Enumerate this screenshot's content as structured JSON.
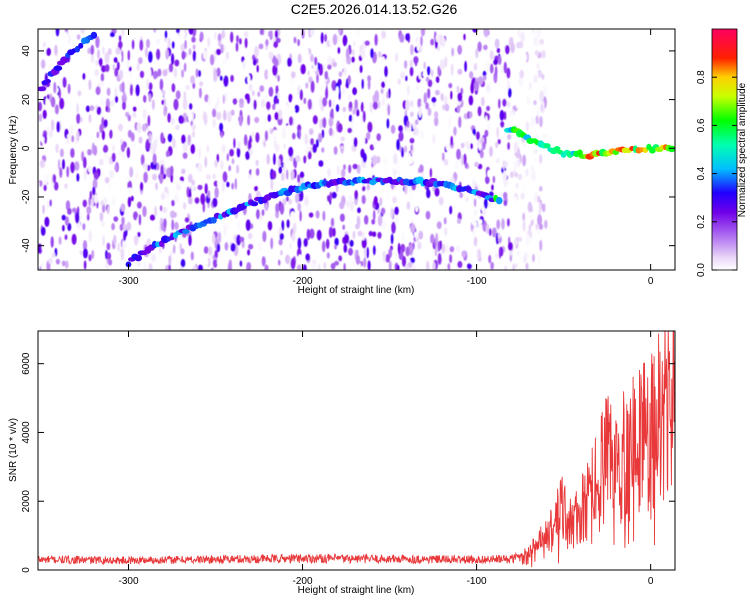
{
  "figure": {
    "title": "C2E5.2026.014.13.52.G26"
  },
  "chart_data": [
    {
      "type": "heatmap",
      "xlabel": "Height of straight line (km)",
      "ylabel": "Frequency (Hz)",
      "xlim": [
        -352,
        14
      ],
      "ylim": [
        -50,
        49
      ],
      "xticks": [
        -300,
        -200,
        -100,
        0
      ],
      "yticks": [
        -40,
        -20,
        0,
        20,
        40
      ],
      "colorbar": {
        "label": "Normalized spectral amplitude",
        "range": [
          0,
          1
        ],
        "ticks": [
          0.0,
          0.2,
          0.4,
          0.6,
          0.8
        ],
        "colormap": "rainbow (white-violet-blue-cyan-green-yellow-red-magenta)"
      },
      "ridge": {
        "description": "dominant spectral track",
        "points": [
          {
            "x": -350,
            "y": 25
          },
          {
            "x": -335,
            "y": 38
          },
          {
            "x": -318,
            "y": 48
          },
          {
            "x": -300,
            "y": -47
          },
          {
            "x": -285,
            "y": -40
          },
          {
            "x": -265,
            "y": -33
          },
          {
            "x": -245,
            "y": -27
          },
          {
            "x": -220,
            "y": -20
          },
          {
            "x": -195,
            "y": -15
          },
          {
            "x": -175,
            "y": -14
          },
          {
            "x": -150,
            "y": -13
          },
          {
            "x": -125,
            "y": -14
          },
          {
            "x": -110,
            "y": -16
          },
          {
            "x": -95,
            "y": -20
          },
          {
            "x": -85,
            "y": -22
          },
          {
            "x": -82,
            "y": 8
          },
          {
            "x": -75,
            "y": 6
          },
          {
            "x": -65,
            "y": 2
          },
          {
            "x": -50,
            "y": -2
          },
          {
            "x": -35,
            "y": -3
          },
          {
            "x": -20,
            "y": -1
          },
          {
            "x": -5,
            "y": 0
          },
          {
            "x": 5,
            "y": 0
          },
          {
            "x": 14,
            "y": 0
          }
        ]
      },
      "noise_cutoff_x": -80
    },
    {
      "type": "line",
      "xlabel": "Height of straight line (km)",
      "ylabel": "SNR (10 * v/v)",
      "xlim": [
        -352,
        14
      ],
      "ylim": [
        0,
        6950
      ],
      "xticks": [
        -300,
        -200,
        -100,
        0
      ],
      "yticks": [
        0,
        2000,
        4000,
        6000
      ],
      "series": [
        {
          "color": "#e8383a",
          "points": [
            {
              "x": -352,
              "y": 300
            },
            {
              "x": -300,
              "y": 280
            },
            {
              "x": -250,
              "y": 310
            },
            {
              "x": -210,
              "y": 330
            },
            {
              "x": -200,
              "y": 340
            },
            {
              "x": -150,
              "y": 320
            },
            {
              "x": -100,
              "y": 300
            },
            {
              "x": -80,
              "y": 320
            },
            {
              "x": -70,
              "y": 500
            },
            {
              "x": -62,
              "y": 900
            },
            {
              "x": -55,
              "y": 1500
            },
            {
              "x": -50,
              "y": 1900
            },
            {
              "x": -45,
              "y": 1400
            },
            {
              "x": -40,
              "y": 1800
            },
            {
              "x": -35,
              "y": 2300
            },
            {
              "x": -30,
              "y": 3000
            },
            {
              "x": -25,
              "y": 3400
            },
            {
              "x": -20,
              "y": 3300
            },
            {
              "x": -15,
              "y": 3800
            },
            {
              "x": -10,
              "y": 3900
            },
            {
              "x": -5,
              "y": 4200
            },
            {
              "x": 0,
              "y": 4400
            },
            {
              "x": 5,
              "y": 4800
            },
            {
              "x": 10,
              "y": 5200
            },
            {
              "x": 14,
              "y": 5500
            }
          ]
        }
      ]
    }
  ]
}
